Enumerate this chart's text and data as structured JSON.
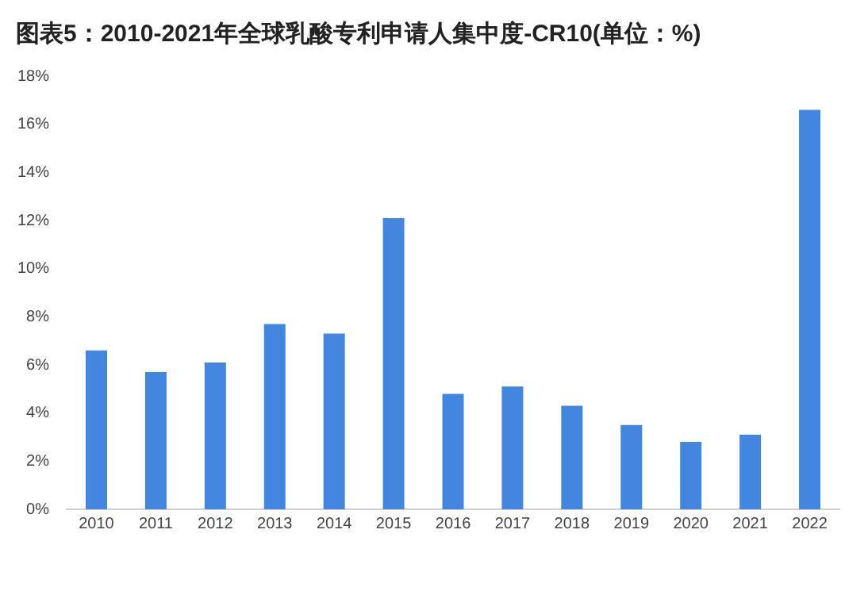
{
  "chart_data": {
    "type": "bar",
    "title": "图表5：2010-2021年全球乳酸专利申请人集中度-CR10(单位：%)",
    "categories": [
      "2010",
      "2011",
      "2012",
      "2013",
      "2014",
      "2015",
      "2016",
      "2017",
      "2018",
      "2019",
      "2020",
      "2021",
      "2022"
    ],
    "values": [
      6.6,
      5.7,
      6.1,
      7.7,
      7.3,
      12.1,
      4.8,
      5.1,
      4.3,
      3.5,
      2.8,
      3.1,
      16.6
    ],
    "color": "#4286e0",
    "ylim": [
      0,
      18
    ],
    "yticks": [
      {
        "value": 0,
        "label": "0%"
      },
      {
        "value": 2,
        "label": "2%"
      },
      {
        "value": 4,
        "label": "4%"
      },
      {
        "value": 6,
        "label": "6%"
      },
      {
        "value": 8,
        "label": "8%"
      },
      {
        "value": 10,
        "label": "10%"
      },
      {
        "value": 12,
        "label": "12%"
      },
      {
        "value": 14,
        "label": "14%"
      },
      {
        "value": 16,
        "label": "16%"
      },
      {
        "value": 18,
        "label": "18%"
      }
    ],
    "grid": false,
    "legend": false
  }
}
